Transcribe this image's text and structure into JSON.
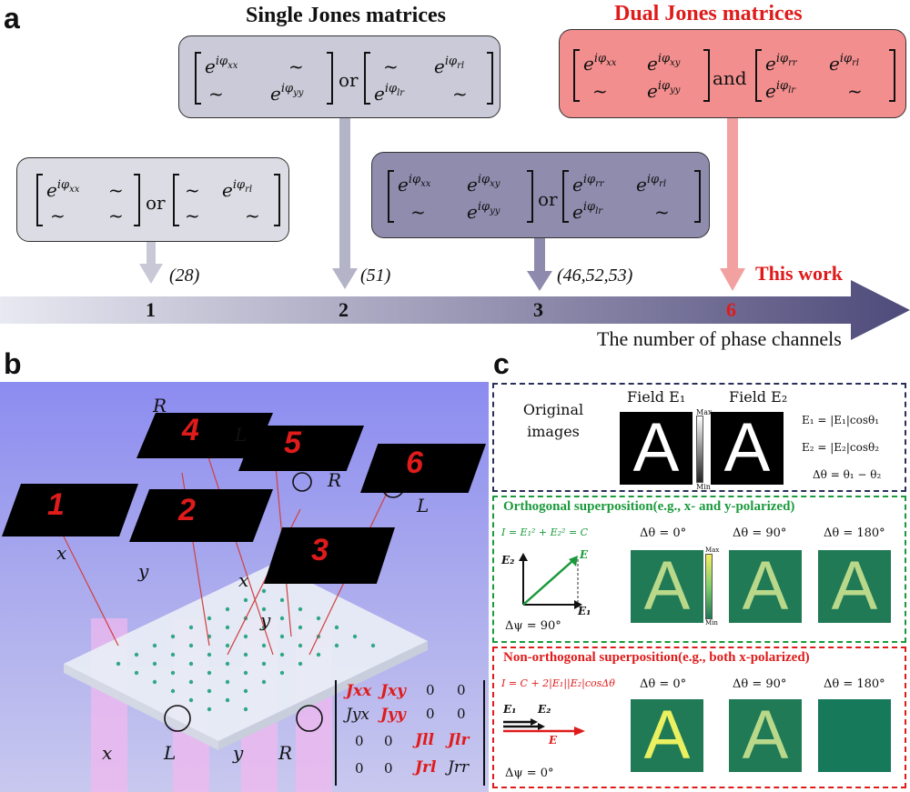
{
  "panel_a": {
    "letter": "a",
    "header_single": "Single Jones matrices",
    "header_dual": "Dual Jones matrices",
    "box1_text": "[e^{iφxx} ~ ; ~ ~] or [~ e^{iφrl} ; ~ ~]",
    "box2_text": "[e^{iφxx} ~ ; ~ e^{iφyy}] or [~ e^{iφrl} ; e^{iφlr} ~]",
    "box3_text": "[e^{iφxx} e^{iφxy} ; ~ e^{iφyy}] or [e^{iφrr} e^{iφrl} ; e^{iφlr} ~]",
    "box4_text": "[e^{iφxx} e^{iφxy} ; ~ e^{iφyy}] and [e^{iφrr} e^{iφrl} ; e^{iφlr} ~]",
    "or": "or",
    "and": "and",
    "ticks": [
      "1",
      "2",
      "3",
      "6"
    ],
    "refs": [
      "(28)",
      "(51)",
      "(46,52,53)"
    ],
    "this_work": "This work",
    "axis_label": "The number of phase channels"
  },
  "panel_b": {
    "letter": "b",
    "screens": [
      "1",
      "2",
      "3",
      "4",
      "5",
      "6"
    ],
    "pol_labels": {
      "x1": "x",
      "y1": "y",
      "x2": "x",
      "y2": "y",
      "R1": "R",
      "L1": "L",
      "R2": "R",
      "L2": "L"
    },
    "input_labels": [
      "x",
      "L",
      "y",
      "R"
    ],
    "matrix": [
      [
        "Jxx",
        "Jxy",
        "0",
        "0"
      ],
      [
        "Jyx",
        "Jyy",
        "0",
        "0"
      ],
      [
        "0",
        "0",
        "Jll",
        "Jlr"
      ],
      [
        "0",
        "0",
        "Jrl",
        "Jrr"
      ]
    ]
  },
  "panel_c": {
    "letter": "c",
    "field1": "Field E₁",
    "field2": "Field E₂",
    "original": "Original images",
    "letter_A": "A",
    "max": "Max",
    "min": "Min",
    "eq1": "E₁ = |E₁|cosθ₁",
    "eq2": "E₂ = |E₂|cosθ₂",
    "eq3": "Δθ = θ₁ − θ₂",
    "orth_title": "Orthogonal superposition(e.g., x- and y-polarized)",
    "orth_eq": "I = E₁² + E₂² = C",
    "orth_psi": "Δψ = 90°",
    "nonorth_title": "Non-orthogonal superposition(e.g., both x-polarized)",
    "nonorth_eq": "I = C + 2|E₁||E₂|cosΔθ",
    "nonorth_psi": "Δψ = 0°",
    "dtheta": [
      "Δθ = 0°",
      "Δθ = 90°",
      "Δθ = 180°"
    ],
    "vec_E1": "E₁",
    "vec_E2": "E₂",
    "vec_E": "E"
  },
  "colors": {
    "red": "#e01b1b",
    "green": "#1a9a3c",
    "navy": "#2a2f5a",
    "pink": "#f08b8b"
  }
}
